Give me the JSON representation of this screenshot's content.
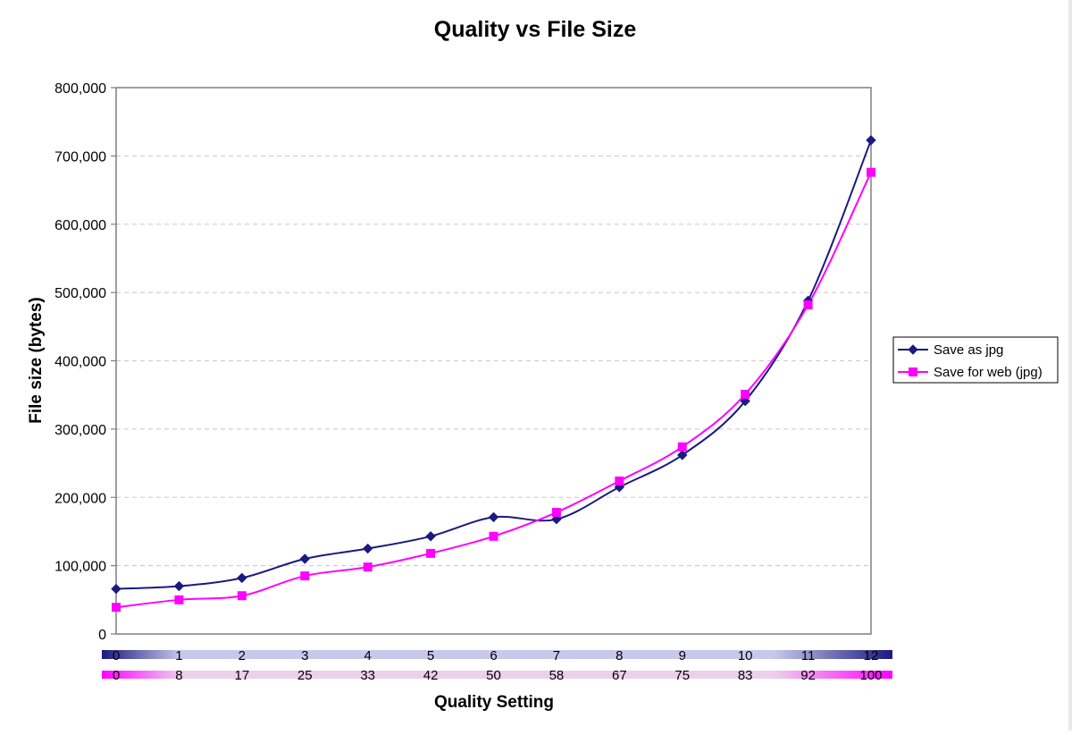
{
  "chart_data": {
    "type": "line",
    "title": "Quality vs File Size",
    "xlabel": "Quality Setting",
    "ylabel": "File size (bytes)",
    "ylim": [
      0,
      800000
    ],
    "y_ticks": [
      0,
      100000,
      200000,
      300000,
      400000,
      500000,
      600000,
      700000,
      800000
    ],
    "y_tick_labels": [
      "0",
      "100,000",
      "200,000",
      "300,000",
      "400,000",
      "500,000",
      "600,000",
      "700,000",
      "800,000"
    ],
    "grid": true,
    "legend_position": "right",
    "x_axis_primary": {
      "labels": [
        "0",
        "1",
        "2",
        "3",
        "4",
        "5",
        "6",
        "7",
        "8",
        "9",
        "10",
        "11",
        "12"
      ],
      "color": "#1a1a80"
    },
    "x_axis_secondary": {
      "labels": [
        "0",
        "8",
        "17",
        "25",
        "33",
        "42",
        "50",
        "58",
        "67",
        "75",
        "83",
        "92",
        "100"
      ],
      "color": "#ff00ff"
    },
    "x": [
      0,
      1,
      2,
      3,
      4,
      5,
      6,
      7,
      8,
      9,
      10,
      11,
      12
    ],
    "series": [
      {
        "name": "Save as jpg",
        "color": "#1a1a80",
        "marker": "diamond",
        "values": [
          66000,
          70000,
          82000,
          110000,
          125000,
          143000,
          171000,
          168000,
          215000,
          262000,
          341000,
          488000,
          723000
        ]
      },
      {
        "name": "Save for web (jpg)",
        "color": "#ff00ff",
        "marker": "square",
        "values": [
          39000,
          50000,
          56000,
          85000,
          98000,
          118000,
          143000,
          178000,
          224000,
          274000,
          351000,
          482000,
          676000
        ]
      }
    ]
  }
}
